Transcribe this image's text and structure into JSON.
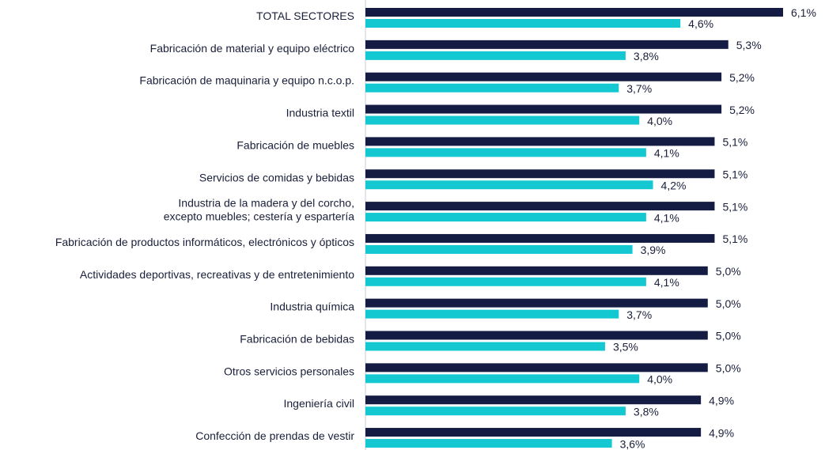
{
  "chart_data": {
    "type": "bar",
    "orientation": "horizontal",
    "categories": [
      "TOTAL SECTORES",
      "Fabricación de material y equipo eléctrico",
      "Fabricación de maquinaria y equipo n.c.o.p.",
      "Industria textil",
      "Fabricación de muebles",
      "Servicios de comidas y bebidas",
      "Industria de la madera y del corcho,\nexcepto muebles; cestería y espartería",
      "Fabricación de productos informáticos, electrónicos y ópticos",
      "Actividades deportivas, recreativas y de entretenimiento",
      "Industria química",
      "Fabricación de bebidas",
      "Otros servicios personales",
      "Ingeniería civil",
      "Confección de prendas de vestir"
    ],
    "series": [
      {
        "color": "#141c44",
        "values": [
          6.1,
          5.3,
          5.2,
          5.2,
          5.1,
          5.1,
          5.1,
          5.1,
          5.0,
          5.0,
          5.0,
          5.0,
          4.9,
          4.9
        ],
        "value_labels": [
          "6,1%",
          "5,3%",
          "5,2%",
          "5,2%",
          "5,1%",
          "5,1%",
          "5,1%",
          "5,1%",
          "5,0%",
          "5,0%",
          "5,0%",
          "5,0%",
          "4,9%",
          "4,9%"
        ]
      },
      {
        "color": "#14c8d2",
        "values": [
          4.6,
          3.8,
          3.7,
          4.0,
          4.1,
          4.2,
          4.1,
          3.9,
          4.1,
          3.7,
          3.5,
          4.0,
          3.8,
          3.6
        ],
        "value_labels": [
          "4,6%",
          "3,8%",
          "3,7%",
          "4,0%",
          "4,1%",
          "4,2%",
          "4,1%",
          "3,9%",
          "4,1%",
          "3,7%",
          "3,5%",
          "4,0%",
          "3,8%",
          "3,6%"
        ]
      }
    ],
    "xlim": [
      0,
      6.1
    ]
  }
}
